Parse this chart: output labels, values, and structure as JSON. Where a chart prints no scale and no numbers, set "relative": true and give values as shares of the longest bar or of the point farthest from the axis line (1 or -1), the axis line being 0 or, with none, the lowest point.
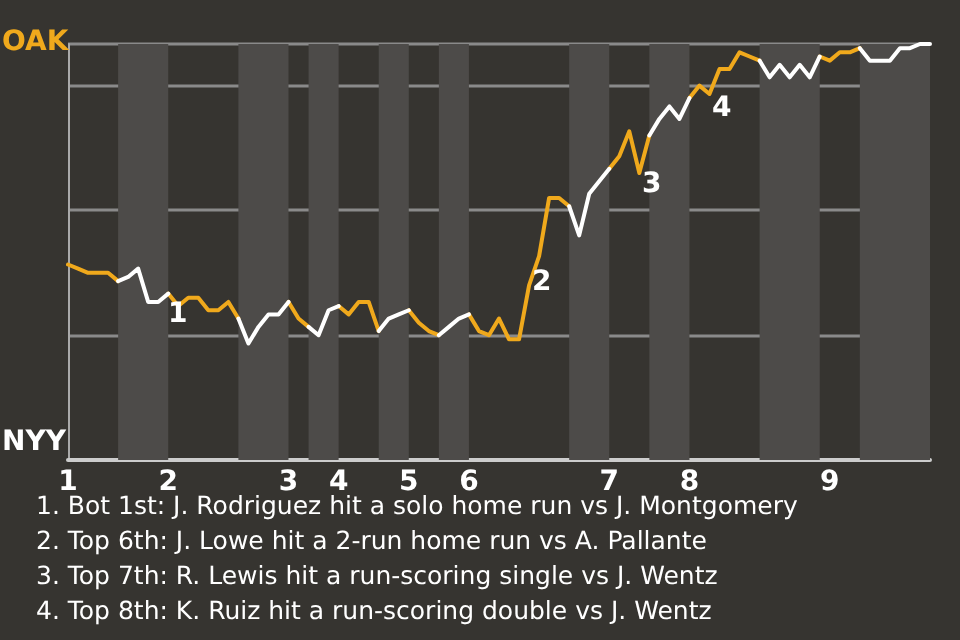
{
  "chart_data": {
    "type": "line",
    "relative": true,
    "categories": [
      "1",
      null,
      null,
      null,
      null,
      null,
      null,
      null,
      null,
      null,
      "2",
      null,
      null,
      null,
      null,
      null,
      null,
      null,
      null,
      null,
      null,
      null,
      "3",
      null,
      null,
      null,
      null,
      "4",
      null,
      null,
      null,
      null,
      null,
      null,
      "5",
      null,
      null,
      null,
      null,
      null,
      "6",
      null,
      null,
      null,
      null,
      null,
      null,
      null,
      null,
      null,
      null,
      null,
      null,
      null,
      "7",
      null,
      null,
      null,
      null,
      null,
      null,
      null,
      "8",
      null,
      null,
      null,
      null,
      null,
      null,
      null,
      null,
      null,
      null,
      null,
      null,
      null,
      "9",
      null,
      null,
      null,
      null,
      null,
      null,
      null,
      null,
      null,
      null
    ],
    "series": [
      {
        "color": "#f0a91c",
        "values": [
          0.47,
          0.46,
          0.45,
          0.45,
          0.45,
          0.43,
          null,
          null,
          null,
          null,
          0.4,
          0.37,
          0.39,
          0.39,
          0.36,
          0.36,
          0.38,
          0.34,
          null,
          null,
          null,
          null,
          0.38,
          0.34,
          0.32,
          null,
          null,
          0.37,
          0.35,
          0.38,
          0.38,
          0.31,
          null,
          null,
          0.36,
          0.33,
          0.31,
          0.3,
          null,
          null,
          0.35,
          0.31,
          0.3,
          0.34,
          0.29,
          0.29,
          0.42,
          0.49,
          0.63,
          0.63,
          0.61,
          null,
          null,
          null,
          0.7,
          0.73,
          0.79,
          0.69,
          0.78,
          null,
          null,
          null,
          0.87,
          0.9,
          0.88,
          0.94,
          0.94,
          0.98,
          0.97,
          0.96,
          null,
          null,
          null,
          null,
          null,
          0.97,
          0.96,
          0.98,
          0.98,
          0.99,
          null,
          null,
          null,
          null,
          null,
          null,
          null
        ]
      },
      {
        "color": "#ffffff",
        "values": [
          null,
          null,
          null,
          null,
          null,
          0.43,
          0.44,
          0.46,
          0.38,
          0.38,
          0.4,
          null,
          null,
          null,
          null,
          null,
          null,
          0.34,
          0.28,
          0.32,
          0.35,
          0.35,
          0.38,
          null,
          0.32,
          0.3,
          0.36,
          0.37,
          null,
          null,
          null,
          0.31,
          0.34,
          0.35,
          0.36,
          null,
          null,
          0.3,
          0.32,
          0.34,
          0.35,
          null,
          null,
          null,
          null,
          null,
          null,
          null,
          null,
          null,
          0.61,
          0.54,
          0.64,
          0.67,
          0.7,
          null,
          null,
          null,
          0.78,
          0.82,
          0.85,
          0.82,
          0.87,
          null,
          null,
          null,
          null,
          null,
          null,
          0.96,
          0.92,
          0.95,
          0.92,
          0.95,
          0.92,
          0.97,
          null,
          null,
          null,
          0.99,
          0.96,
          0.96,
          0.96,
          0.99,
          0.99,
          1,
          1
        ]
      }
    ],
    "grid": "y",
    "annotations": [
      "OAK",
      "NYY",
      "1",
      "2",
      "3",
      "4",
      "1. Bot 1st: J. Rodriguez hit a solo home run vs J. Montgomery",
      "2. Top 6th: J. Lowe hit a 2-run home run vs A. Pallante",
      "3. Top 7th: R. Lewis hit a run-scoring single vs J. Wentz",
      "4. Top 8th: K. Ruiz hit a run-scoring double vs J. Wentz"
    ]
  }
}
